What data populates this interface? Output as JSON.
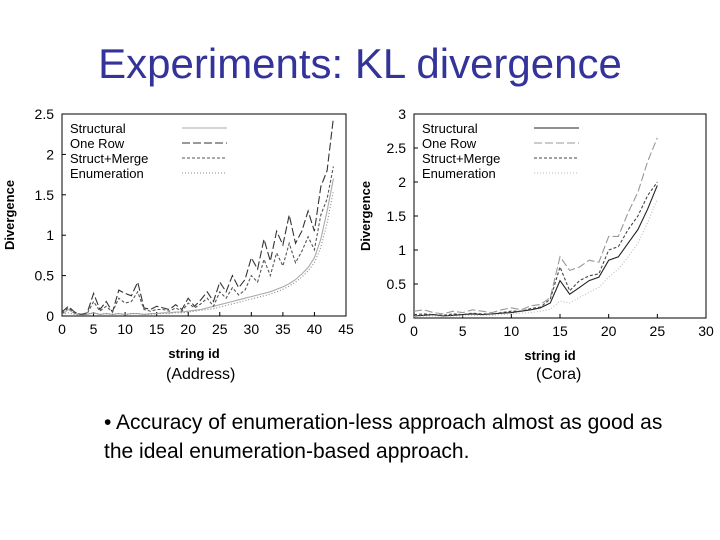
{
  "slide": {
    "title": "Experiments: KL divergence",
    "bullet": "• Accuracy of enumeration-less approach almost as good as the ideal enumeration-based approach."
  },
  "chart_data": [
    {
      "type": "line",
      "caption": "(Address)",
      "xlabel": "string id",
      "ylabel": "Divergence",
      "xlim": [
        0,
        45
      ],
      "ylim": [
        0,
        2.5
      ],
      "xticks": [
        0,
        5,
        10,
        15,
        20,
        25,
        30,
        35,
        40,
        45
      ],
      "yticks": [
        0,
        0.5,
        1,
        1.5,
        2,
        2.5
      ],
      "legend_position": "top-left",
      "series": [
        {
          "name": "Structural",
          "color": "#aaaaaa",
          "dash": "",
          "x": [
            0,
            1,
            2,
            3,
            4,
            5,
            6,
            7,
            8,
            9,
            10,
            11,
            12,
            13,
            14,
            15,
            16,
            17,
            18,
            19,
            20,
            21,
            22,
            23,
            24,
            25,
            26,
            27,
            28,
            29,
            30,
            31,
            32,
            33,
            34,
            35,
            36,
            37,
            38,
            39,
            40,
            41,
            42,
            43
          ],
          "y": [
            0.02,
            0.08,
            0.03,
            0.02,
            0.02,
            0.04,
            0.02,
            0.03,
            0.02,
            0.03,
            0.02,
            0.03,
            0.03,
            0.02,
            0.03,
            0.03,
            0.04,
            0.04,
            0.05,
            0.05,
            0.06,
            0.07,
            0.08,
            0.1,
            0.12,
            0.14,
            0.16,
            0.18,
            0.2,
            0.22,
            0.24,
            0.26,
            0.28,
            0.3,
            0.33,
            0.36,
            0.4,
            0.45,
            0.52,
            0.6,
            0.72,
            0.95,
            1.3,
            1.7
          ]
        },
        {
          "name": "One Row",
          "color": "#333333",
          "dash": "8,3",
          "x": [
            0,
            1,
            2,
            3,
            4,
            5,
            6,
            7,
            8,
            9,
            10,
            11,
            12,
            13,
            14,
            15,
            16,
            17,
            18,
            19,
            20,
            21,
            22,
            23,
            24,
            25,
            26,
            27,
            28,
            29,
            30,
            31,
            32,
            33,
            34,
            35,
            36,
            37,
            38,
            39,
            40,
            41,
            42,
            43
          ],
          "y": [
            0.05,
            0.12,
            0.05,
            0.02,
            0.04,
            0.28,
            0.08,
            0.18,
            0.05,
            0.32,
            0.28,
            0.25,
            0.42,
            0.1,
            0.08,
            0.12,
            0.1,
            0.08,
            0.14,
            0.08,
            0.22,
            0.12,
            0.2,
            0.3,
            0.18,
            0.42,
            0.3,
            0.5,
            0.35,
            0.45,
            0.72,
            0.58,
            0.95,
            0.68,
            1.05,
            0.88,
            1.25,
            0.9,
            1.05,
            1.3,
            1.05,
            1.6,
            1.8,
            2.45
          ]
        },
        {
          "name": "Struct+Merge",
          "color": "#555555",
          "dash": "3,2",
          "x": [
            0,
            1,
            2,
            3,
            4,
            5,
            6,
            7,
            8,
            9,
            10,
            11,
            12,
            13,
            14,
            15,
            16,
            17,
            18,
            19,
            20,
            21,
            22,
            23,
            24,
            25,
            26,
            27,
            28,
            29,
            30,
            31,
            32,
            33,
            34,
            35,
            36,
            37,
            38,
            39,
            40,
            41,
            42,
            43
          ],
          "y": [
            0.03,
            0.1,
            0.04,
            0.02,
            0.03,
            0.18,
            0.06,
            0.12,
            0.05,
            0.22,
            0.16,
            0.18,
            0.3,
            0.08,
            0.06,
            0.08,
            0.08,
            0.06,
            0.1,
            0.06,
            0.16,
            0.1,
            0.15,
            0.22,
            0.12,
            0.3,
            0.22,
            0.35,
            0.26,
            0.32,
            0.5,
            0.42,
            0.7,
            0.5,
            0.78,
            0.62,
            0.9,
            0.66,
            0.8,
            0.98,
            0.82,
            1.25,
            1.45,
            1.85
          ]
        },
        {
          "name": "Enumeration",
          "color": "#888888",
          "dash": "1,2",
          "x": [
            0,
            1,
            2,
            3,
            4,
            5,
            6,
            7,
            8,
            9,
            10,
            11,
            12,
            13,
            14,
            15,
            16,
            17,
            18,
            19,
            20,
            21,
            22,
            23,
            24,
            25,
            26,
            27,
            28,
            29,
            30,
            31,
            32,
            33,
            34,
            35,
            36,
            37,
            38,
            39,
            40,
            41,
            42,
            43
          ],
          "y": [
            0.02,
            0.04,
            0.02,
            0.01,
            0.02,
            0.04,
            0.02,
            0.03,
            0.02,
            0.03,
            0.02,
            0.03,
            0.03,
            0.02,
            0.02,
            0.03,
            0.03,
            0.03,
            0.04,
            0.04,
            0.05,
            0.06,
            0.07,
            0.08,
            0.09,
            0.11,
            0.13,
            0.15,
            0.17,
            0.19,
            0.21,
            0.23,
            0.25,
            0.27,
            0.3,
            0.33,
            0.37,
            0.42,
            0.48,
            0.56,
            0.66,
            0.85,
            1.15,
            1.55
          ]
        }
      ]
    },
    {
      "type": "line",
      "caption": "(Cora)",
      "xlabel": "string id",
      "ylabel": "Divergence",
      "xlim": [
        0,
        30
      ],
      "ylim": [
        0,
        3
      ],
      "xticks": [
        0,
        5,
        10,
        15,
        20,
        25,
        30
      ],
      "yticks": [
        0,
        0.5,
        1,
        1.5,
        2,
        2.5,
        3
      ],
      "legend_position": "top-left",
      "series": [
        {
          "name": "Structural",
          "color": "#222222",
          "dash": "",
          "x": [
            0,
            1,
            2,
            3,
            4,
            5,
            6,
            7,
            8,
            9,
            10,
            11,
            12,
            13,
            14,
            15,
            16,
            17,
            18,
            19,
            20,
            21,
            22,
            23,
            24,
            25
          ],
          "y": [
            0.03,
            0.04,
            0.05,
            0.03,
            0.04,
            0.05,
            0.06,
            0.05,
            0.06,
            0.07,
            0.08,
            0.1,
            0.12,
            0.15,
            0.22,
            0.55,
            0.35,
            0.45,
            0.55,
            0.6,
            0.85,
            0.9,
            1.1,
            1.3,
            1.6,
            1.95
          ]
        },
        {
          "name": "One Row",
          "color": "#999999",
          "dash": "8,3",
          "x": [
            0,
            1,
            2,
            3,
            4,
            5,
            6,
            7,
            8,
            9,
            10,
            11,
            12,
            13,
            14,
            15,
            16,
            17,
            18,
            19,
            20,
            21,
            22,
            23,
            24,
            25
          ],
          "y": [
            0.1,
            0.12,
            0.08,
            0.06,
            0.1,
            0.08,
            0.12,
            0.1,
            0.08,
            0.12,
            0.15,
            0.12,
            0.18,
            0.2,
            0.3,
            0.9,
            0.7,
            0.75,
            0.85,
            0.82,
            1.2,
            1.2,
            1.55,
            1.85,
            2.3,
            2.65
          ]
        },
        {
          "name": "Struct+Merge",
          "color": "#444444",
          "dash": "3,2",
          "x": [
            0,
            1,
            2,
            3,
            4,
            5,
            6,
            7,
            8,
            9,
            10,
            11,
            12,
            13,
            14,
            15,
            16,
            17,
            18,
            19,
            20,
            21,
            22,
            23,
            24,
            25
          ],
          "y": [
            0.05,
            0.06,
            0.05,
            0.04,
            0.06,
            0.05,
            0.07,
            0.06,
            0.06,
            0.08,
            0.1,
            0.1,
            0.14,
            0.16,
            0.28,
            0.75,
            0.4,
            0.55,
            0.62,
            0.65,
            1.0,
            1.05,
            1.3,
            1.5,
            1.8,
            2.0
          ]
        },
        {
          "name": "Enumeration",
          "color": "#bbbbbb",
          "dash": "1,2",
          "x": [
            0,
            1,
            2,
            3,
            4,
            5,
            6,
            7,
            8,
            9,
            10,
            11,
            12,
            13,
            14,
            15,
            16,
            17,
            18,
            19,
            20,
            21,
            22,
            23,
            24,
            25
          ],
          "y": [
            0.02,
            0.03,
            0.03,
            0.02,
            0.03,
            0.03,
            0.04,
            0.04,
            0.04,
            0.05,
            0.06,
            0.07,
            0.08,
            0.1,
            0.13,
            0.25,
            0.22,
            0.3,
            0.38,
            0.45,
            0.6,
            0.72,
            0.9,
            1.1,
            1.4,
            1.75
          ]
        }
      ]
    }
  ]
}
